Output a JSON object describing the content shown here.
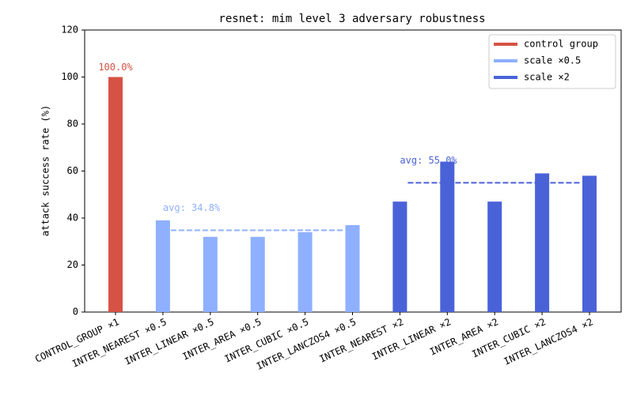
{
  "chart_data": {
    "type": "bar",
    "title": "resnet: mim level 3 adversary robustness",
    "ylabel": "attack success rate (%)",
    "categories": [
      "CONTROL_GROUP ×1",
      "INTER_NEAREST ×0.5",
      "INTER_LINEAR ×0.5",
      "INTER_AREA ×0.5",
      "INTER_CUBIC ×0.5",
      "INTER_LANCZOS4 ×0.5",
      "INTER_NEAREST ×2",
      "INTER_LINEAR ×2",
      "INTER_AREA ×2",
      "INTER_CUBIC ×2",
      "INTER_LANCZOS4 ×2"
    ],
    "series": [
      {
        "name": "control group",
        "color": "#d65244",
        "values": [
          100,
          null,
          null,
          null,
          null,
          null,
          null,
          null,
          null,
          null,
          null
        ],
        "value_labels": [
          "100.0%",
          null,
          null,
          null,
          null,
          null,
          null,
          null,
          null,
          null,
          null
        ]
      },
      {
        "name": "scale ×0.5",
        "color": "#8fb0ff",
        "values": [
          null,
          39,
          32,
          32,
          34,
          37,
          null,
          null,
          null,
          null,
          null
        ]
      },
      {
        "name": "scale ×2",
        "color": "#4a62d8",
        "values": [
          null,
          null,
          null,
          null,
          null,
          null,
          47,
          64,
          47,
          59,
          58
        ]
      }
    ],
    "averages": [
      {
        "value": 34.8,
        "label": "avg: 34.8%",
        "color": "#8fb0ff"
      },
      {
        "value": 55.0,
        "label": "avg: 55.0%",
        "color": "#4a62d8"
      }
    ],
    "ylim": [
      0,
      120
    ],
    "yticks": [
      0,
      20,
      40,
      60,
      80,
      100,
      120
    ],
    "legend": "upper right"
  }
}
